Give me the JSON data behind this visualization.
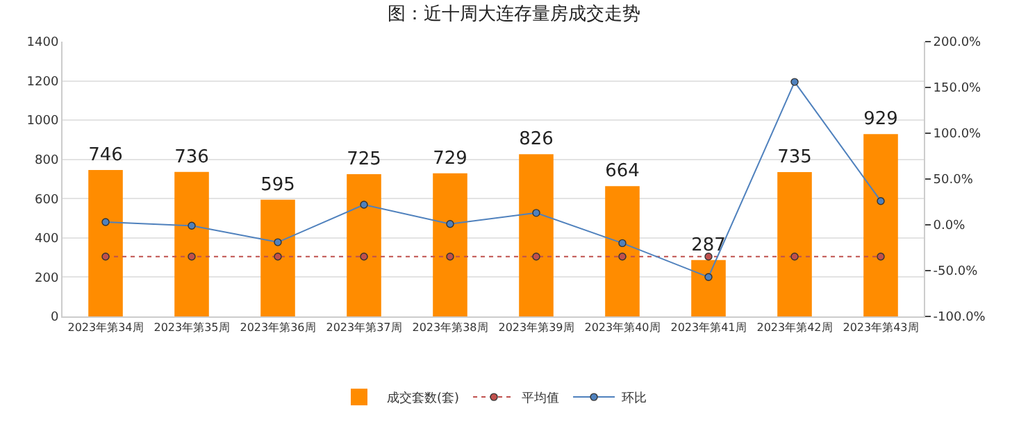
{
  "chart_data": {
    "type": "bar",
    "title": "图：近十周大连存量房成交走势",
    "categories": [
      "2023年第34周",
      "2023年第35周",
      "2023年第36周",
      "2023年第37周",
      "2023年第38周",
      "2023年第39周",
      "2023年第40周",
      "2023年第41周",
      "2023年第42周",
      "2023年第43周"
    ],
    "series": [
      {
        "name": "成交套数(套)",
        "color": "#ff8c00",
        "values": [
          746,
          736,
          595,
          725,
          729,
          826,
          664,
          287,
          735,
          929
        ],
        "data_labels": true
      },
      {
        "name": "平均值",
        "type": "line",
        "color": "#c0504d",
        "values": [
          305,
          305,
          305,
          305,
          305,
          305,
          305,
          305,
          305,
          305
        ],
        "line_style": "dotted",
        "marker": "circle"
      },
      {
        "name": "环比",
        "type": "line",
        "axis": "y2",
        "color": "#4f81bd",
        "values": [
          3,
          -1,
          -19,
          22,
          1,
          13,
          -20,
          -57,
          156,
          26
        ],
        "line_style": "solid",
        "marker": "circle"
      }
    ],
    "ylim": [
      0,
      1400
    ],
    "yticks": [
      0,
      200,
      400,
      600,
      800,
      1000,
      1200,
      1400
    ],
    "y2lim": [
      -100,
      200
    ],
    "y2ticks": [
      {
        "value": -100,
        "label": "-100.0%"
      },
      {
        "value": -50,
        "label": "-50.0%"
      },
      {
        "value": 0,
        "label": "0.0%"
      },
      {
        "value": 50,
        "label": "50.0%"
      },
      {
        "value": 100,
        "label": "100.0%"
      },
      {
        "value": 150,
        "label": "150.0%"
      },
      {
        "value": 200,
        "label": "200.0%"
      }
    ],
    "grid": "y",
    "legend": "bottom"
  }
}
